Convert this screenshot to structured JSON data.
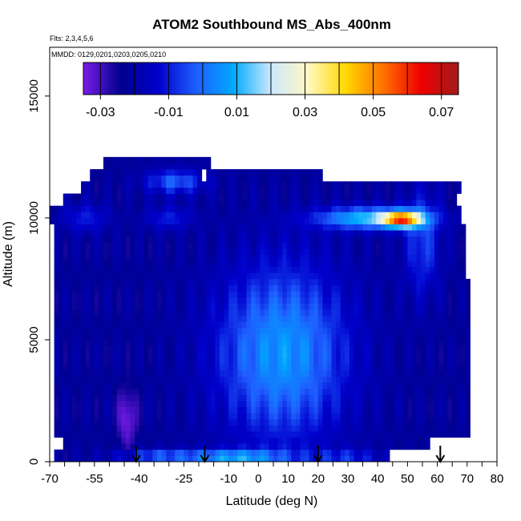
{
  "chart_data": {
    "type": "heatmap",
    "title": "ATOM2 Southbound MS_Abs_400nm",
    "notes": {
      "flights": "Flts: 2,3,4,5,6",
      "dates": "MMDD: 0129,0201,0203,0205,0210"
    },
    "xlabel": "Latitude (deg N)",
    "ylabel": "Altitude (m)",
    "xlim": [
      -70,
      80
    ],
    "ylim": [
      0,
      17000
    ],
    "x_ticks": [
      -70,
      -55,
      -40,
      -25,
      -10,
      0,
      10,
      20,
      30,
      40,
      50,
      60,
      70,
      80
    ],
    "x_minor_step": 5,
    "y_ticks": [
      0,
      5000,
      10000,
      15000
    ],
    "colorbar": {
      "min": -0.035,
      "max": 0.075,
      "ticks": [
        -0.03,
        -0.01,
        0.01,
        0.03,
        0.05,
        0.07
      ],
      "tick_labels": [
        "-0.03",
        "-0.01",
        "0.01",
        "0.03",
        "0.05",
        "0.07"
      ],
      "dividers": [
        -0.03,
        -0.02,
        -0.01,
        0.0,
        0.01,
        0.02,
        0.03,
        0.04,
        0.05,
        0.06,
        0.07
      ],
      "colors": [
        "#7a1ce8",
        "#00008f",
        "#0000cc",
        "#1e5eff",
        "#00aaff",
        "#cce8ff",
        "#fff8c0",
        "#ffd800",
        "#ff7000",
        "#ee0000",
        "#a31a1a"
      ]
    },
    "arrows_latitude": [
      -41,
      -18,
      20,
      61
    ],
    "grid": false,
    "legend": "colorbar top"
  }
}
